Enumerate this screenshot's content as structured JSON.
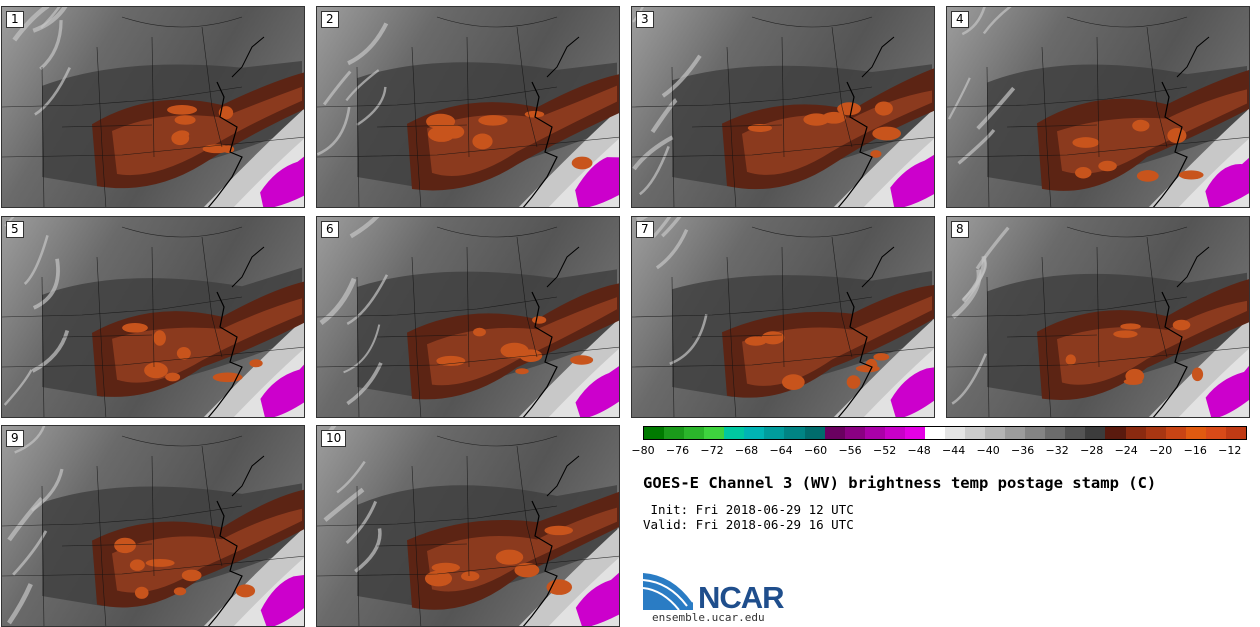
{
  "panels": [
    {
      "number": "1"
    },
    {
      "number": "2"
    },
    {
      "number": "3"
    },
    {
      "number": "4"
    },
    {
      "number": "5"
    },
    {
      "number": "6"
    },
    {
      "number": "7"
    },
    {
      "number": "8"
    },
    {
      "number": "9"
    },
    {
      "number": "10"
    }
  ],
  "colorbar": {
    "colors": [
      "#007a00",
      "#1a9a1a",
      "#2bb52b",
      "#3ed33e",
      "#00c8a0",
      "#00b4b4",
      "#009c9c",
      "#008484",
      "#006c6c",
      "#6a0060",
      "#8a0082",
      "#aa00a8",
      "#c800c8",
      "#e400e4",
      "#ffffff",
      "#e4e4e4",
      "#cccccc",
      "#b4b4b4",
      "#9c9c9c",
      "#848484",
      "#6c6c6c",
      "#545454",
      "#3c3c3c",
      "#5a1a0e",
      "#8a2a10",
      "#a83612",
      "#c84414",
      "#e05a10",
      "#d84a18",
      "#c03a14"
    ],
    "tick_labels": [
      "−80",
      "−76",
      "−72",
      "−68",
      "−64",
      "−60",
      "−56",
      "−52",
      "−48",
      "−44",
      "−40",
      "−36",
      "−32",
      "−28",
      "−24",
      "−20",
      "−16",
      "−12"
    ],
    "tick_values": [
      -80,
      -76,
      -72,
      -68,
      -64,
      -60,
      -56,
      -52,
      -48,
      -44,
      -40,
      -36,
      -32,
      -28,
      -24,
      -20,
      -16,
      -12
    ],
    "range": [
      -80,
      -10
    ]
  },
  "title": "GOES-E Channel 3 (WV) brightness temp postage stamp (C)",
  "init_line": " Init: Fri 2018-06-29 12 UTC",
  "valid_line": "Valid: Fri 2018-06-29 16 UTC",
  "logo": {
    "text": "NCAR",
    "url": "ensemble.ucar.edu"
  },
  "colors": {
    "brown_dark": "#5c2414",
    "brown": "#8b3a1e",
    "orange": "#c8541c",
    "magenta": "#cc00cc",
    "gray_dark": "#3f3f3f",
    "gray_mid": "#6b6b6b",
    "gray_light": "#9a9a9a"
  }
}
